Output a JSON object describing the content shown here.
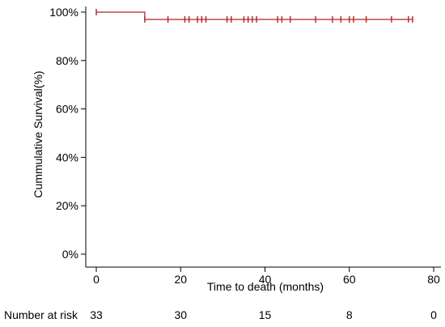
{
  "chart_data": {
    "type": "line",
    "ylabel": "Cummulative Survival(%)",
    "xlabel": "Time to death (months)",
    "xlim": [
      -2,
      80
    ],
    "ylim": [
      0,
      100
    ],
    "x_ticks": [
      0,
      20,
      40,
      60,
      80
    ],
    "y_ticks": [
      0,
      20,
      40,
      60,
      80,
      100
    ],
    "y_tick_labels": [
      "0%",
      "20%",
      "40%",
      "60%",
      "80%",
      "100%"
    ],
    "series": [
      {
        "color": "#b22222",
        "steps": [
          [
            0,
            100
          ],
          [
            11.5,
            100
          ],
          [
            11.5,
            97
          ],
          [
            75,
            97
          ]
        ],
        "censored": [
          0,
          11.5,
          17,
          21,
          22,
          24,
          25,
          26,
          31,
          32,
          35,
          36,
          37,
          38,
          43,
          44,
          46,
          52,
          56,
          58,
          60,
          61,
          64,
          70,
          74,
          75
        ]
      }
    ],
    "number_at_risk": {
      "label": "Number at risk",
      "times": [
        0,
        20,
        40,
        60,
        80
      ],
      "values": [
        "33",
        "30",
        "15",
        "8",
        "0"
      ]
    }
  }
}
